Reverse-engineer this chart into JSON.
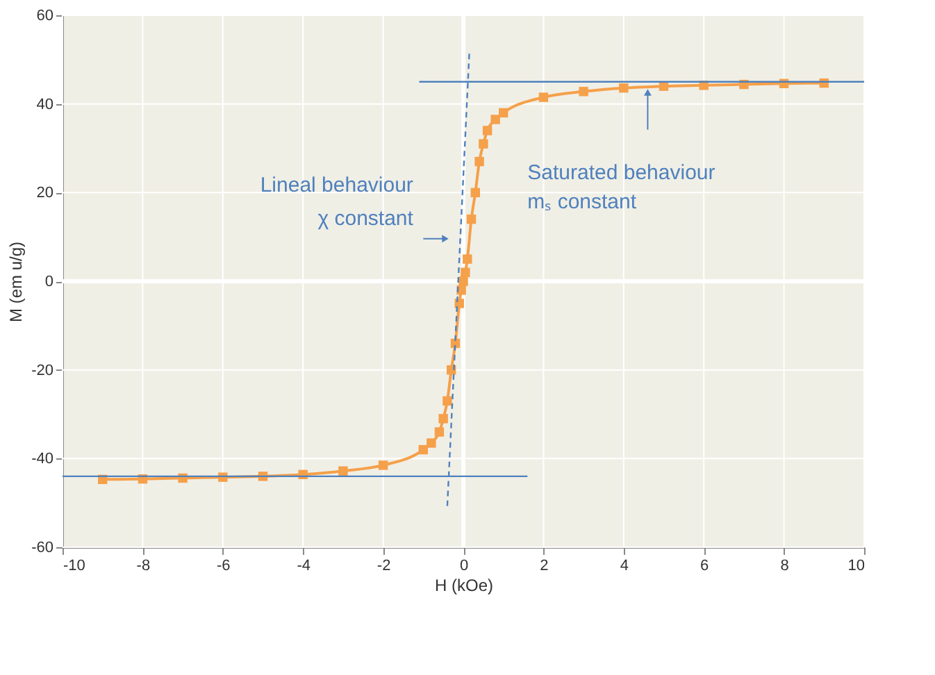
{
  "chart_data": {
    "type": "line",
    "xlabel": "H (kOe)",
    "ylabel": "M (em u/g)",
    "xlim": [
      -10,
      10
    ],
    "ylim": [
      -60,
      60
    ],
    "xticks": [
      -10,
      -8,
      -6,
      -4,
      -2,
      0,
      2,
      4,
      6,
      8,
      10
    ],
    "yticks": [
      -60,
      -40,
      -20,
      0,
      20,
      40,
      60
    ],
    "grid": true,
    "series": [
      {
        "color": "#f5a04a",
        "marker": "square",
        "line_style": "solid",
        "x": [
          -9,
          -8,
          -7,
          -6,
          -5,
          -4,
          -3,
          -2,
          -1,
          -0.8,
          -0.6,
          -0.5,
          -0.4,
          -0.3,
          -0.2,
          -0.1,
          -0.05,
          0,
          0.05,
          0.1,
          0.2,
          0.3,
          0.4,
          0.5,
          0.6,
          0.8,
          1,
          2,
          3,
          4,
          5,
          6,
          7,
          8,
          9
        ],
        "values": [
          -44.7,
          -44.6,
          -44.4,
          -44.2,
          -44,
          -43.6,
          -42.8,
          -41.5,
          -38,
          -36.5,
          -34,
          -31,
          -27,
          -20,
          -14,
          -5,
          -2,
          0,
          2,
          5,
          14,
          20,
          27,
          31,
          34,
          36.5,
          38,
          41.5,
          42.8,
          43.6,
          44,
          44.2,
          44.4,
          44.6,
          44.7
        ]
      },
      {
        "color": "#4f81bd",
        "marker": "none",
        "line_style": "solid",
        "x": [
          -1.1,
          10
        ],
        "values": [
          45,
          45
        ]
      },
      {
        "color": "#4f81bd",
        "marker": "none",
        "line_style": "solid",
        "x": [
          -10,
          1.6
        ],
        "values": [
          -44,
          -44
        ]
      },
      {
        "color": "#4f81bd",
        "marker": "none",
        "line_style": "dashed",
        "x": [
          -0.4,
          0.15
        ],
        "values": [
          -50.7,
          51.6
        ]
      }
    ],
    "annotations": [
      "Lineal behaviour",
      "χ constant",
      "Saturated behaviour",
      "mₛ constant"
    ]
  }
}
